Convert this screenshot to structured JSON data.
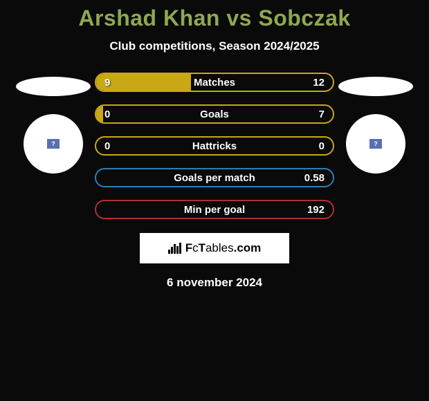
{
  "title": "Arshad Khan vs Sobczak",
  "subtitle": "Club competitions, Season 2024/2025",
  "date": "6 november 2024",
  "brand": "FcTables.com",
  "colors": {
    "title_color": "#8fa850",
    "text_color": "#ffffff",
    "background": "#0a0a0a",
    "ellipse_bg": "#ffffff",
    "badge_bg": "#ffffff",
    "badge_inner": "#5a6fb0",
    "brand_bg": "#ffffff"
  },
  "stats": [
    {
      "label": "Matches",
      "left_value": "9",
      "right_value": "12",
      "left_num": 9,
      "right_num": 12,
      "border_color": "#c9a815",
      "fill_color": "#c9a815",
      "fill_pct": 40
    },
    {
      "label": "Goals",
      "left_value": "0",
      "right_value": "7",
      "left_num": 0,
      "right_num": 7,
      "border_color": "#c9a815",
      "fill_color": "#c9a815",
      "fill_pct": 3
    },
    {
      "label": "Hattricks",
      "left_value": "0",
      "right_value": "0",
      "left_num": 0,
      "right_num": 0,
      "border_color": "#c9a815",
      "fill_color": "#c9a815",
      "fill_pct": 0
    },
    {
      "label": "Goals per match",
      "left_value": "",
      "right_value": "0.58",
      "left_num": 0,
      "right_num": 0.58,
      "border_color": "#2f7fb0",
      "fill_color": "#2f7fb0",
      "fill_pct": 0
    },
    {
      "label": "Min per goal",
      "left_value": "",
      "right_value": "192",
      "left_num": 0,
      "right_num": 192,
      "border_color": "#b03030",
      "fill_color": "#b03030",
      "fill_pct": 0
    }
  ],
  "badge_glyph": "?"
}
